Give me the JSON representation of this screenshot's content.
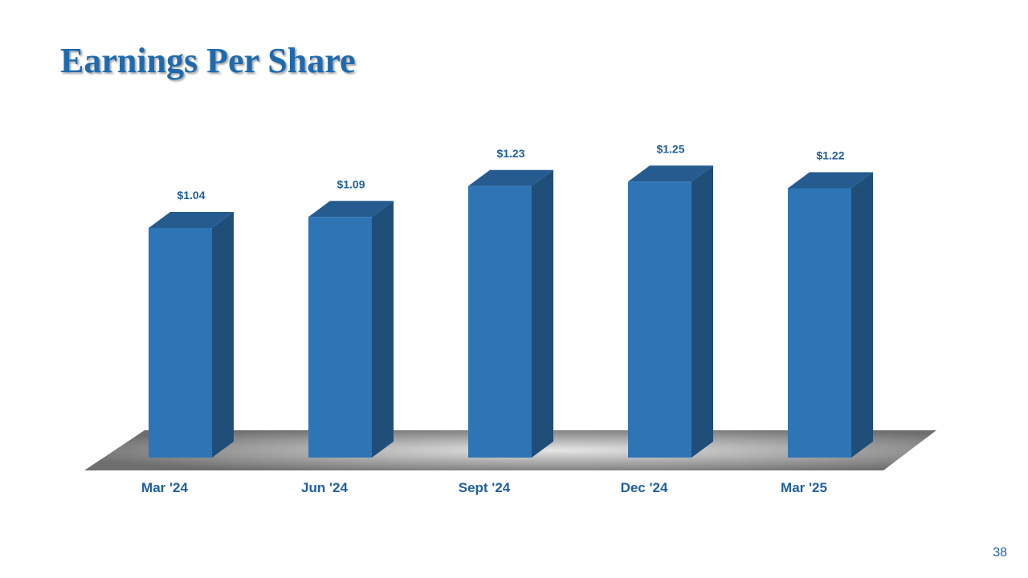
{
  "chart_data": {
    "type": "bar3d",
    "title": "Earnings Per Share",
    "categories": [
      "Mar '24",
      "Jun '24",
      "Sept '24",
      "Dec '24",
      "Mar '25"
    ],
    "values": [
      1.04,
      1.09,
      1.23,
      1.25,
      1.22
    ],
    "value_labels": [
      "$1.04",
      "$1.09",
      "$1.23",
      "$1.25",
      "$1.22"
    ],
    "color": "#2e75b6"
  },
  "page_number": "38"
}
